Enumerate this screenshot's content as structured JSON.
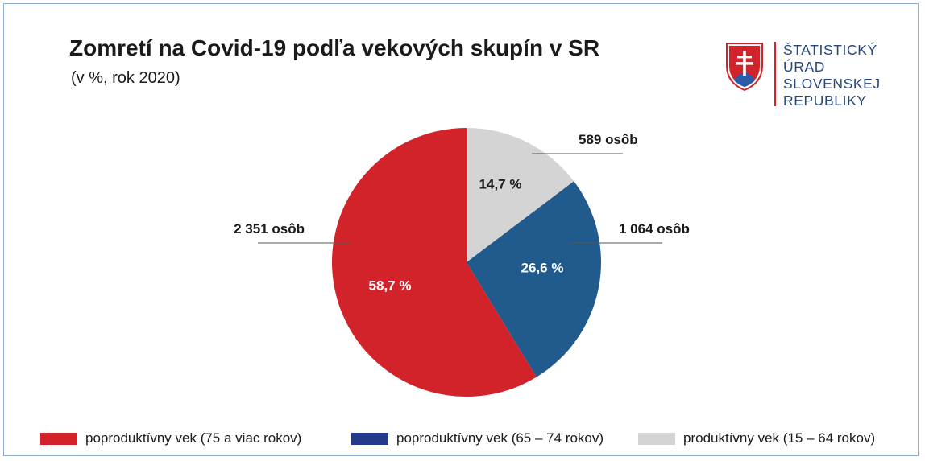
{
  "chart_data": {
    "type": "pie",
    "title": "Zomretí na Covid-19 podľa vekových skupín v SR",
    "subtitle": "(v %, rok 2020)",
    "slices": [
      {
        "name": "poproduktívny vek (75 a viac rokov)",
        "value": 58.7,
        "label": "58,7 %",
        "count_label": "2 351 osôb",
        "color": "#d2232a",
        "label_color": "#ffffff"
      },
      {
        "name": "poproduktívny vek (65 – 74 rokov)",
        "value": 26.6,
        "label": "26,6 %",
        "count_label": "1 064 osôb",
        "color": "#215a8d",
        "label_color": "#ffffff"
      },
      {
        "name": "produktívny vek (15 – 64 rokov)",
        "value": 14.7,
        "label": "14,7 %",
        "count_label": "589 osôb",
        "color": "#d4d4d4",
        "label_color": "#1a1a1a"
      }
    ],
    "legend_swatch_colors": [
      "#d2232a",
      "#233a8c",
      "#d4d4d4"
    ],
    "legend_placement": "bottom"
  },
  "logo": {
    "lines": [
      "ŠTATISTICKÝ",
      "ÚRAD",
      "SLOVENSKEJ",
      "REPUBLIKY"
    ],
    "text_color": "#25477e",
    "divider_color": "#d2232a"
  }
}
